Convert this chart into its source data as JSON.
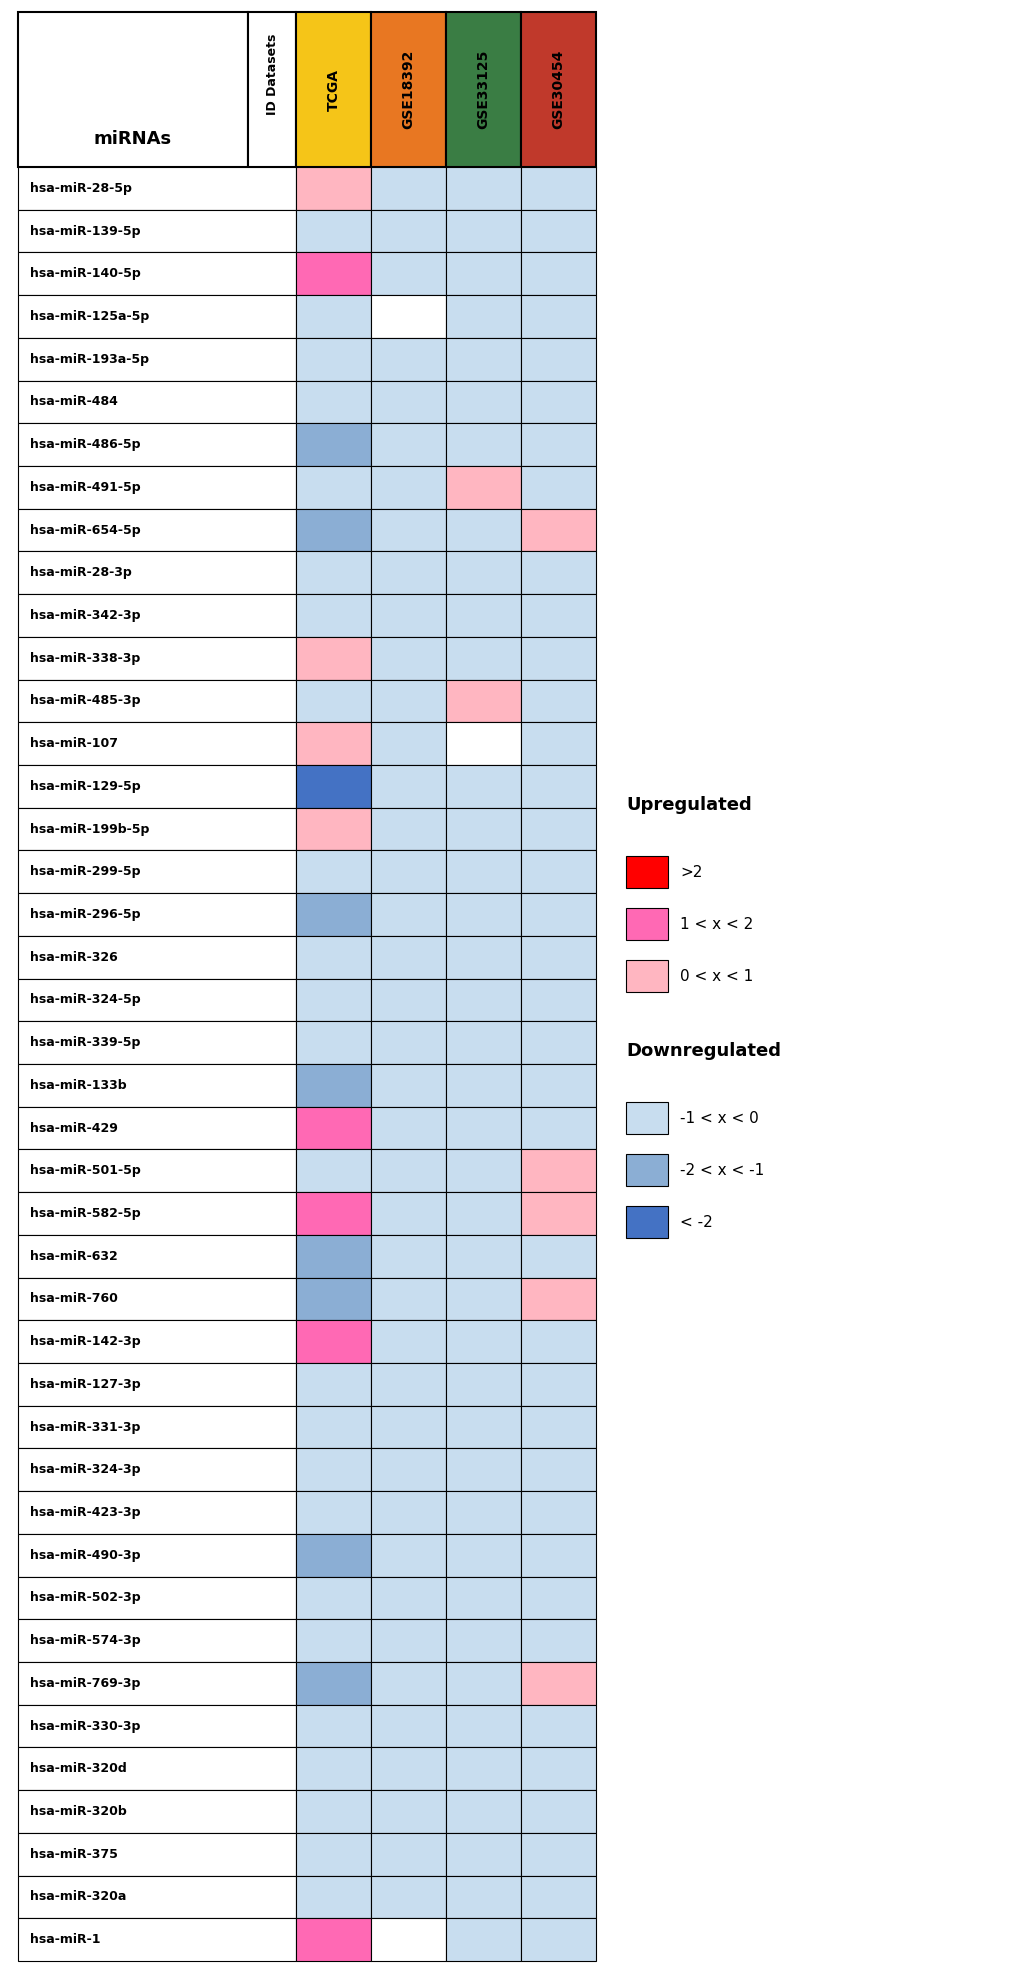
{
  "mirnas": [
    "hsa-miR-28-5p",
    "hsa-miR-139-5p",
    "hsa-miR-140-5p",
    "hsa-miR-125a-5p",
    "hsa-miR-193a-5p",
    "hsa-miR-484",
    "hsa-miR-486-5p",
    "hsa-miR-491-5p",
    "hsa-miR-654-5p",
    "hsa-miR-28-3p",
    "hsa-miR-342-3p",
    "hsa-miR-338-3p",
    "hsa-miR-485-3p",
    "hsa-miR-107",
    "hsa-miR-129-5p",
    "hsa-miR-199b-5p",
    "hsa-miR-299-5p",
    "hsa-miR-296-5p",
    "hsa-miR-326",
    "hsa-miR-324-5p",
    "hsa-miR-339-5p",
    "hsa-miR-133b",
    "hsa-miR-429",
    "hsa-miR-501-5p",
    "hsa-miR-582-5p",
    "hsa-miR-632",
    "hsa-miR-760",
    "hsa-miR-142-3p",
    "hsa-miR-127-3p",
    "hsa-miR-331-3p",
    "hsa-miR-324-3p",
    "hsa-miR-423-3p",
    "hsa-miR-490-3p",
    "hsa-miR-502-3p",
    "hsa-miR-574-3p",
    "hsa-miR-769-3p",
    "hsa-miR-330-3p",
    "hsa-miR-320d",
    "hsa-miR-320b",
    "hsa-miR-375",
    "hsa-miR-320a",
    "hsa-miR-1"
  ],
  "datasets": [
    "TCGA",
    "GSE18392",
    "GSE33125",
    "GSE30454"
  ],
  "dataset_colors": [
    "#F5C518",
    "#E87722",
    "#3A7D44",
    "#C0392B"
  ],
  "heatmap_data": {
    "hsa-miR-28-5p": [
      1,
      -1,
      -1,
      -1
    ],
    "hsa-miR-139-5p": [
      -1,
      -1,
      -1,
      -1
    ],
    "hsa-miR-140-5p": [
      2,
      -1,
      -1,
      -1
    ],
    "hsa-miR-125a-5p": [
      -1,
      0,
      -1,
      -1
    ],
    "hsa-miR-193a-5p": [
      -1,
      -1,
      -1,
      -1
    ],
    "hsa-miR-484": [
      -1,
      -1,
      -1,
      -1
    ],
    "hsa-miR-486-5p": [
      -2,
      -1,
      -1,
      -1
    ],
    "hsa-miR-491-5p": [
      -1,
      -1,
      1,
      -1
    ],
    "hsa-miR-654-5p": [
      -2,
      -1,
      -1,
      1
    ],
    "hsa-miR-28-3p": [
      -1,
      -1,
      -1,
      -1
    ],
    "hsa-miR-342-3p": [
      -1,
      -1,
      -1,
      -1
    ],
    "hsa-miR-338-3p": [
      1,
      -1,
      -1,
      -1
    ],
    "hsa-miR-485-3p": [
      -1,
      -1,
      1,
      -1
    ],
    "hsa-miR-107": [
      1,
      -1,
      0,
      -1
    ],
    "hsa-miR-129-5p": [
      -3,
      -1,
      -1,
      -1
    ],
    "hsa-miR-199b-5p": [
      1,
      -1,
      -1,
      -1
    ],
    "hsa-miR-299-5p": [
      -1,
      -1,
      -1,
      -1
    ],
    "hsa-miR-296-5p": [
      -2,
      -1,
      -1,
      -1
    ],
    "hsa-miR-326": [
      -1,
      -1,
      -1,
      -1
    ],
    "hsa-miR-324-5p": [
      -1,
      -1,
      -1,
      -1
    ],
    "hsa-miR-339-5p": [
      -1,
      -1,
      -1,
      -1
    ],
    "hsa-miR-133b": [
      -2,
      -1,
      -1,
      -1
    ],
    "hsa-miR-429": [
      2,
      -1,
      -1,
      -1
    ],
    "hsa-miR-501-5p": [
      -1,
      -1,
      -1,
      1
    ],
    "hsa-miR-582-5p": [
      2,
      -1,
      -1,
      1
    ],
    "hsa-miR-632": [
      -2,
      -1,
      -1,
      -1
    ],
    "hsa-miR-760": [
      -2,
      -1,
      -1,
      1
    ],
    "hsa-miR-142-3p": [
      2,
      -1,
      -1,
      -1
    ],
    "hsa-miR-127-3p": [
      -1,
      -1,
      -1,
      -1
    ],
    "hsa-miR-331-3p": [
      -1,
      -1,
      -1,
      -1
    ],
    "hsa-miR-324-3p": [
      -1,
      -1,
      -1,
      -1
    ],
    "hsa-miR-423-3p": [
      -1,
      -1,
      -1,
      -1
    ],
    "hsa-miR-490-3p": [
      -2,
      -1,
      -1,
      -1
    ],
    "hsa-miR-502-3p": [
      -1,
      -1,
      -1,
      -1
    ],
    "hsa-miR-574-3p": [
      -1,
      -1,
      -1,
      -1
    ],
    "hsa-miR-769-3p": [
      -2,
      -1,
      -1,
      1
    ],
    "hsa-miR-330-3p": [
      -1,
      -1,
      -1,
      -1
    ],
    "hsa-miR-320d": [
      -1,
      -1,
      -1,
      -1
    ],
    "hsa-miR-320b": [
      -1,
      -1,
      -1,
      -1
    ],
    "hsa-miR-375": [
      -1,
      -1,
      -1,
      -1
    ],
    "hsa-miR-320a": [
      -1,
      -1,
      -1,
      -1
    ],
    "hsa-miR-1": [
      2,
      0,
      -1,
      -1
    ]
  },
  "color_map": {
    "white": "#FFFFFF",
    "up_light": "#FFB6C1",
    "up_mid": "#FF69B4",
    "up_strong": "#FF0000",
    "down_light": "#C8DDEF",
    "down_mid": "#8BAED4",
    "down_strong": "#4472C4"
  }
}
